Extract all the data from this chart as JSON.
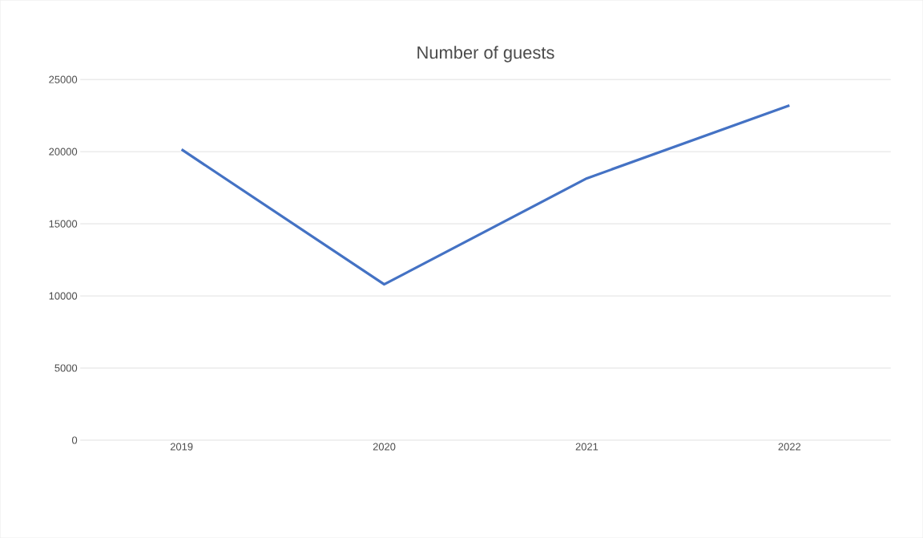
{
  "chart_data": {
    "type": "line",
    "title": "Number of guests",
    "categories": [
      "2019",
      "2020",
      "2021",
      "2022"
    ],
    "series": [
      {
        "color": "#4472c4",
        "values": [
          20150,
          10800,
          18150,
          23200
        ]
      }
    ],
    "ylim": [
      0,
      25000
    ],
    "yticks": [
      0,
      5000,
      10000,
      15000,
      20000,
      25000
    ],
    "grid": "y"
  }
}
